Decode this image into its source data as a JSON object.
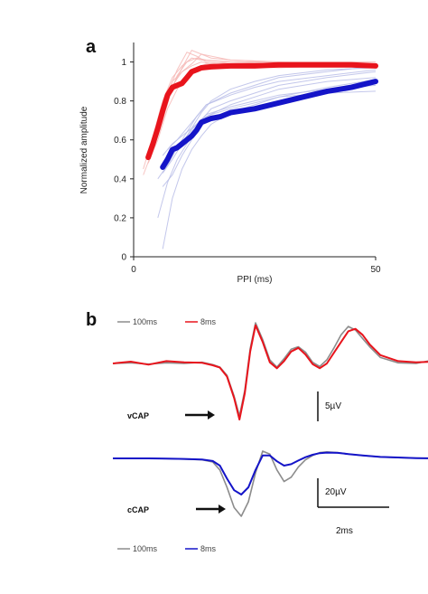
{
  "chart_data": [
    {
      "type": "line",
      "panel": "a",
      "xlabel": "PPI (ms)",
      "ylabel": "Normalized amplitude",
      "xlim": [
        0,
        50
      ],
      "ylim": [
        0,
        1.1
      ],
      "xticks": [
        "0",
        "50"
      ],
      "yticks": [
        "0",
        "0.2",
        "0.4",
        "0.6",
        "0.8",
        "1"
      ],
      "colors": {
        "red_mean": "#e8141c",
        "red_individual": "#f6b9b6",
        "blue_mean": "#1414c8",
        "blue_individual": "#b9bde8"
      },
      "series": [
        {
          "color": "red",
          "role": "mean",
          "x": [
            3,
            4,
            5,
            6,
            7,
            8,
            9,
            10,
            11,
            12,
            13,
            14,
            16,
            20,
            25,
            30,
            35,
            40,
            45,
            50
          ],
          "y": [
            0.51,
            0.58,
            0.66,
            0.75,
            0.83,
            0.87,
            0.88,
            0.89,
            0.92,
            0.95,
            0.96,
            0.97,
            0.975,
            0.98,
            0.98,
            0.985,
            0.985,
            0.985,
            0.985,
            0.98
          ]
        },
        {
          "color": "blue",
          "role": "mean",
          "x": [
            6,
            7,
            8,
            9,
            10,
            11,
            12,
            13,
            14,
            16,
            18,
            20,
            25,
            30,
            35,
            40,
            45,
            50
          ],
          "y": [
            0.46,
            0.5,
            0.55,
            0.56,
            0.58,
            0.6,
            0.62,
            0.65,
            0.69,
            0.71,
            0.72,
            0.74,
            0.76,
            0.79,
            0.82,
            0.85,
            0.87,
            0.9
          ]
        }
      ],
      "individual_traces": [
        {
          "color": "red",
          "x": [
            2,
            4,
            6,
            8,
            10,
            12,
            14,
            20,
            30,
            40,
            50
          ],
          "y": [
            0.45,
            0.62,
            0.8,
            0.92,
            0.98,
            1.02,
            1.01,
            1.0,
            0.99,
            0.98,
            0.97
          ]
        },
        {
          "color": "red",
          "x": [
            2,
            4,
            6,
            8,
            10,
            12,
            14,
            20,
            30,
            40,
            50
          ],
          "y": [
            0.42,
            0.55,
            0.72,
            0.88,
            0.95,
            0.99,
            1.04,
            1.01,
            1.0,
            0.99,
            0.99
          ]
        },
        {
          "color": "red",
          "x": [
            3,
            5,
            7,
            9,
            11,
            13,
            15,
            20,
            30,
            40,
            50
          ],
          "y": [
            0.5,
            0.66,
            0.84,
            0.96,
            1.05,
            1.03,
            1.0,
            0.99,
            0.98,
            0.99,
            0.98
          ]
        },
        {
          "color": "red",
          "x": [
            3,
            5,
            7,
            9,
            11,
            13,
            15,
            20,
            30,
            40,
            50
          ],
          "y": [
            0.48,
            0.6,
            0.76,
            0.86,
            0.93,
            0.97,
            0.99,
            1.0,
            1.0,
            1.0,
            1.0
          ]
        },
        {
          "color": "red",
          "x": [
            4,
            6,
            8,
            10,
            12,
            14,
            16,
            20,
            30,
            40,
            50
          ],
          "y": [
            0.55,
            0.7,
            0.87,
            0.97,
            1.06,
            1.04,
            1.02,
            1.01,
            1.0,
            0.98,
            0.97
          ]
        },
        {
          "color": "red",
          "x": [
            4,
            6,
            8,
            10,
            12,
            14,
            16,
            20,
            30,
            40,
            50
          ],
          "y": [
            0.58,
            0.74,
            0.9,
            0.95,
            0.98,
            1.0,
            0.99,
            0.98,
            0.97,
            0.98,
            0.99
          ]
        },
        {
          "color": "red",
          "x": [
            5,
            7,
            9,
            11,
            13,
            15,
            20,
            30,
            40,
            50
          ],
          "y": [
            0.62,
            0.8,
            0.93,
            1.0,
            1.02,
            1.01,
            1.0,
            0.99,
            0.99,
            0.98
          ]
        },
        {
          "color": "blue",
          "x": [
            6,
            8,
            10,
            12,
            14,
            16,
            20,
            25,
            30,
            40,
            50
          ],
          "y": [
            0.04,
            0.3,
            0.45,
            0.55,
            0.62,
            0.68,
            0.74,
            0.78,
            0.82,
            0.87,
            0.91
          ]
        },
        {
          "color": "blue",
          "x": [
            5,
            7,
            9,
            11,
            13,
            15,
            20,
            25,
            30,
            40,
            50
          ],
          "y": [
            0.2,
            0.38,
            0.5,
            0.58,
            0.66,
            0.72,
            0.78,
            0.82,
            0.86,
            0.9,
            0.92
          ]
        },
        {
          "color": "blue",
          "x": [
            6,
            8,
            10,
            12,
            14,
            16,
            20,
            25,
            30,
            40,
            50
          ],
          "y": [
            0.36,
            0.42,
            0.52,
            0.6,
            0.7,
            0.76,
            0.8,
            0.84,
            0.88,
            0.92,
            0.95
          ]
        },
        {
          "color": "blue",
          "x": [
            5,
            7,
            9,
            11,
            13,
            15,
            20,
            25,
            30,
            40,
            50
          ],
          "y": [
            0.4,
            0.47,
            0.56,
            0.64,
            0.72,
            0.78,
            0.83,
            0.87,
            0.9,
            0.93,
            0.96
          ]
        },
        {
          "color": "blue",
          "x": [
            6,
            8,
            10,
            12,
            14,
            16,
            20,
            25,
            30,
            40,
            50
          ],
          "y": [
            0.43,
            0.5,
            0.58,
            0.66,
            0.74,
            0.8,
            0.86,
            0.9,
            0.93,
            0.96,
            0.97
          ]
        },
        {
          "color": "blue",
          "x": [
            7,
            9,
            11,
            13,
            15,
            20,
            25,
            30,
            40,
            50
          ],
          "y": [
            0.5,
            0.56,
            0.62,
            0.68,
            0.73,
            0.77,
            0.8,
            0.83,
            0.86,
            0.88
          ]
        },
        {
          "color": "blue",
          "x": [
            6,
            8,
            10,
            12,
            14,
            16,
            20,
            25,
            30,
            40,
            50
          ],
          "y": [
            0.52,
            0.58,
            0.62,
            0.66,
            0.7,
            0.73,
            0.76,
            0.79,
            0.82,
            0.84,
            0.85
          ]
        },
        {
          "color": "blue",
          "x": [
            7,
            9,
            11,
            13,
            15,
            20,
            25,
            30,
            40,
            50
          ],
          "y": [
            0.55,
            0.6,
            0.66,
            0.72,
            0.78,
            0.84,
            0.88,
            0.92,
            0.95,
            0.98
          ]
        }
      ]
    },
    {
      "type": "line",
      "panel": "b",
      "subplots": [
        {
          "label": "vCAP",
          "legend": [
            {
              "name": "100ms",
              "color": "#8c8c8c"
            },
            {
              "name": "8ms",
              "color": "#e8141c"
            }
          ],
          "scalebar": "5µV",
          "x_ms": [
            0,
            0.5,
            1,
            1.5,
            2,
            2.5,
            2.8,
            3.0,
            3.2,
            3.4,
            3.55,
            3.7,
            3.85,
            4.0,
            4.2,
            4.4,
            4.6,
            4.8,
            5.0,
            5.2,
            5.4,
            5.6,
            5.8,
            6.0,
            6.2,
            6.4,
            6.6,
            6.8,
            7.0,
            7.2,
            7.5,
            8,
            8.5,
            9,
            9.5
          ],
          "series": [
            {
              "name": "100ms",
              "values_uV": [
                0,
                0.1,
                -0.1,
                0.1,
                0,
                0.2,
                -0.2,
                -0.6,
                -2.0,
                -5.5,
                -8.8,
                -4.5,
                2.5,
                6.8,
                4.0,
                0.6,
                -0.6,
                0.8,
                2.4,
                2.8,
                1.9,
                0.2,
                -0.5,
                0.6,
                2.6,
                4.8,
                6.2,
                5.6,
                4.2,
                2.8,
                1.0,
                0.1,
                0,
                0.6,
                0.2
              ]
            },
            {
              "name": "8ms",
              "values_uV": [
                0,
                0.3,
                -0.2,
                0.4,
                0.2,
                0.1,
                -0.3,
                -0.7,
                -2.2,
                -5.8,
                -9.4,
                -5.0,
                2.0,
                6.4,
                3.6,
                0.2,
                -0.8,
                0.4,
                2.0,
                2.6,
                1.5,
                -0.1,
                -0.8,
                0.0,
                1.8,
                3.6,
                5.4,
                5.8,
                4.8,
                3.2,
                1.4,
                0.4,
                0.2,
                0.3,
                0.0
              ]
            }
          ]
        },
        {
          "label": "cCAP",
          "legend": [
            {
              "name": "100ms",
              "color": "#8c8c8c"
            },
            {
              "name": "8ms",
              "color": "#1414c8"
            }
          ],
          "scalebar": "20µV",
          "time_scalebar": "2ms",
          "x_ms": [
            0,
            0.5,
            1,
            1.5,
            2,
            2.5,
            2.8,
            3.0,
            3.2,
            3.4,
            3.6,
            3.8,
            4.0,
            4.2,
            4.4,
            4.6,
            4.8,
            5.0,
            5.2,
            5.4,
            5.6,
            5.8,
            6.0,
            6.3,
            6.6,
            7.0,
            7.5,
            8,
            8.5,
            9,
            9.5
          ],
          "series": [
            {
              "name": "100ms",
              "values_uV": [
                0,
                0,
                0,
                -0.2,
                -0.5,
                -1.0,
                -2.5,
                -8,
                -20,
                -34,
                -40,
                -30,
                -10,
                5,
                3,
                -8,
                -16,
                -13,
                -6,
                -1,
                2,
                4,
                4.5,
                4,
                3,
                2,
                1,
                0.5,
                0.2,
                0,
                0
              ]
            },
            {
              "name": "8ms",
              "values_uV": [
                0,
                0,
                0,
                -0.2,
                -0.4,
                -0.8,
                -1.8,
                -5,
                -14,
                -22,
                -25,
                -20,
                -8,
                2,
                2,
                -2,
                -5,
                -4,
                -1.5,
                0.8,
                2.5,
                3.6,
                4,
                3.8,
                3,
                2,
                1,
                0.6,
                0.2,
                0,
                0
              ]
            }
          ]
        }
      ]
    }
  ],
  "labels": {
    "panel_a": "a",
    "panel_b": "b",
    "xlabel": "PPI (ms)",
    "ylabel": "Normalized amplitude",
    "vcap": "vCAP",
    "ccap": "cCAP",
    "vcap_scale": "5µV",
    "ccap_scale": "20µV",
    "time_scale": "2ms",
    "legend_top_grey": "100ms",
    "legend_top_red": "8ms",
    "legend_bottom_grey": "100ms",
    "legend_bottom_blue": "8ms"
  }
}
